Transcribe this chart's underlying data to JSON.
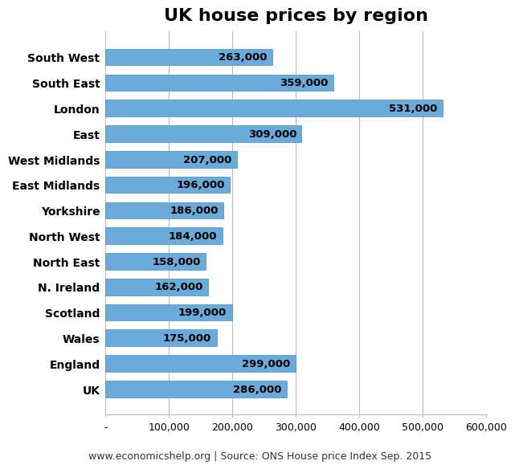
{
  "title": "UK house prices by region",
  "categories": [
    "UK",
    "England",
    "Wales",
    "Scotland",
    "N. Ireland",
    "North East",
    "North West",
    "Yorkshire",
    "East Midlands",
    "West Midlands",
    "East",
    "London",
    "South East",
    "South West"
  ],
  "values": [
    286000,
    299000,
    175000,
    199000,
    162000,
    158000,
    184000,
    186000,
    196000,
    207000,
    309000,
    531000,
    359000,
    263000
  ],
  "bar_color": "#6aabdb",
  "bar_edgecolor": "#4a8fc0",
  "label_color": "#000000",
  "background_color": "#ffffff",
  "grid_color": "#bbbbbb",
  "xlim": [
    0,
    600000
  ],
  "xticks": [
    0,
    100000,
    200000,
    300000,
    400000,
    500000,
    600000
  ],
  "xtick_labels": [
    "-",
    "100,000",
    "200,000",
    "300,000",
    "400,000",
    "500,000",
    "600,000"
  ],
  "footer": "www.economicshelp.org | Source: ONS House price Index Sep. 2015",
  "title_fontsize": 16,
  "ylabel_fontsize": 10,
  "value_fontsize": 9.5,
  "tick_fontsize": 9,
  "footer_fontsize": 9
}
